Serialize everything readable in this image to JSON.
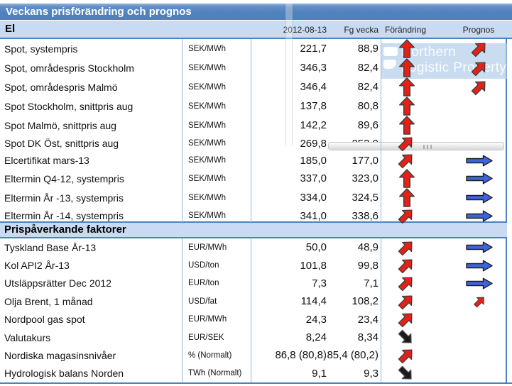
{
  "title": "Veckans prisförändring och prognos",
  "columns": {
    "date": "2012-08-13",
    "prev_week": "Fg vecka",
    "change": "Förändring",
    "forecast": "Prognos"
  },
  "sections": [
    {
      "label": "El",
      "rows": [
        {
          "name": "Spot, systempris",
          "unit": "SEK/MWh",
          "value": "221,7",
          "prev": "88,9",
          "change": "up-red",
          "forecast": "upright-red"
        },
        {
          "name": "Spot, områdespris Stockholm",
          "unit": "SEK/MWh",
          "value": "346,3",
          "prev": "82,4",
          "change": "up-red",
          "forecast": "upright-red"
        },
        {
          "name": "Spot, områdespris Malmö",
          "unit": "SEK/MWh",
          "value": "346,4",
          "prev": "82,4",
          "change": "up-red",
          "forecast": "upright-red"
        },
        {
          "name": "Spot Stockholm, snittpris aug",
          "unit": "SEK/MWh",
          "value": "137,8",
          "prev": "80,8",
          "change": "up-red",
          "forecast": null
        },
        {
          "name": "Spot Malmö, snittpris aug",
          "unit": "SEK/MWh",
          "value": "142,2",
          "prev": "89,6",
          "change": "up-red",
          "forecast": null
        },
        {
          "name": "Spot DK Öst, snittpris aug",
          "unit": "SEK/MWh",
          "value": "269,8",
          "prev": "253,9",
          "change": "upright-red",
          "forecast": null
        },
        {
          "name": "Elcertifikat mars-13",
          "unit": "SEK/MWh",
          "value": "185,0",
          "prev": "177,0",
          "change": "upright-red",
          "forecast": "right-blue"
        },
        {
          "name": "Eltermin Q4-12, systempris",
          "unit": "SEK/MWh",
          "value": "337,0",
          "prev": "323,0",
          "change": "up-red",
          "forecast": "right-blue"
        },
        {
          "name": "Eltermin År -13, systempris",
          "unit": "SEK/MWh",
          "value": "334,0",
          "prev": "324,5",
          "change": "up-red",
          "forecast": "right-blue"
        },
        {
          "name": "Eltermin År -14, systempris",
          "unit": "SEK/MWh",
          "value": "341,0",
          "prev": "338,6",
          "change": "upright-red",
          "forecast": "right-blue"
        }
      ]
    },
    {
      "label": "Prispåverkande faktorer",
      "rows": [
        {
          "name": "Tyskland Base År-13",
          "unit": "EUR/MWh",
          "value": "50,0",
          "prev": "48,9",
          "change": "upright-red",
          "forecast": "right-blue"
        },
        {
          "name": "Kol API2 År-13",
          "unit": "USD/ton",
          "value": "101,8",
          "prev": "99,8",
          "change": "upright-red",
          "forecast": "right-blue"
        },
        {
          "name": "Utsläppsrätter Dec 2012",
          "unit": "EUR/ton",
          "value": "7,3",
          "prev": "7,1",
          "change": "upright-red",
          "forecast": "right-blue"
        },
        {
          "name": "Olja Brent, 1 månad",
          "unit": "USD/fat",
          "value": "114,4",
          "prev": "108,2",
          "change": "upright-red",
          "forecast": "upright-red-small"
        },
        {
          "name": "Nordpool gas spot",
          "unit": "EUR/MWh",
          "value": "24,3",
          "prev": "23,4",
          "change": "upright-red",
          "forecast": null
        },
        {
          "name": "Valutakurs",
          "unit": "EUR/SEK",
          "value": "8,24",
          "prev": "8,34",
          "change": "downright-black",
          "forecast": null
        },
        {
          "name": "Nordiska magasinsnivåer",
          "unit": "% (Normalt)",
          "value": "86,8 (80,8)",
          "prev": "85,4 (80,2)",
          "change": "upright-red",
          "forecast": null
        },
        {
          "name": "Hydrologisk balans Norden",
          "unit": "TWh (Normalt)",
          "value": "9,1",
          "prev": "9,3",
          "change": "downright-black",
          "forecast": null
        }
      ]
    }
  ],
  "watermark": {
    "line1": "Northern",
    "line2": "Logistic Property"
  },
  "colors": {
    "header_blue": "#4f81bd",
    "band_light_blue": "#c9dbf2",
    "grid_blue": "#95b3d7",
    "arrow_red": "#e52017",
    "arrow_blue": "#3d64dd",
    "arrow_black": "#1a1a1a"
  }
}
